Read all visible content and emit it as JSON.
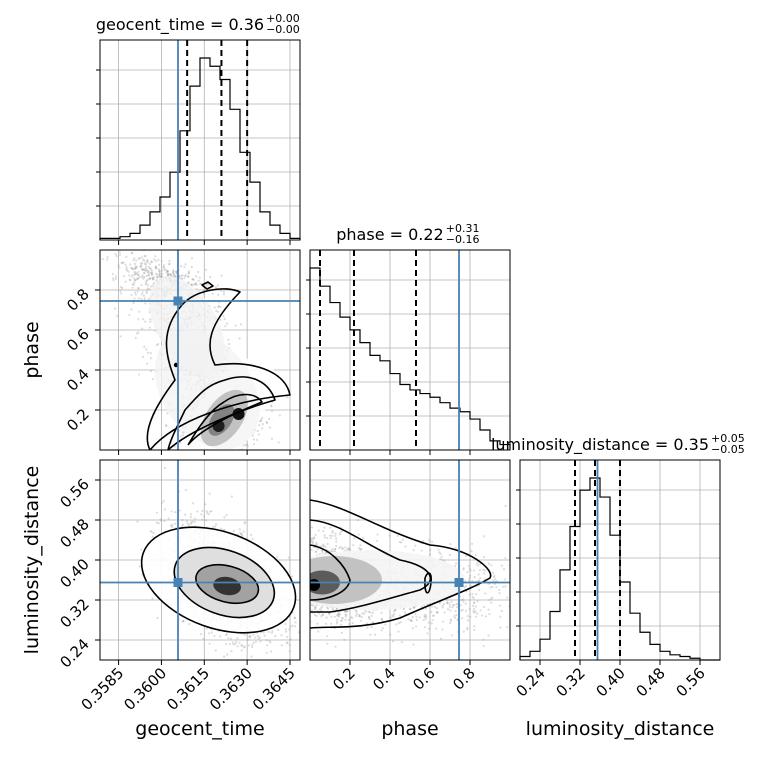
{
  "chart_data": {
    "type": "corner",
    "params": [
      "geocent_time",
      "phase",
      "luminosity_distance"
    ],
    "axis_labels": [
      "geocent_time",
      "phase",
      "luminosity_distance"
    ],
    "ranges": {
      "geocent_time": [
        0.35785,
        0.36485
      ],
      "phase": [
        0.0,
        1.0
      ],
      "luminosity_distance": [
        0.2,
        0.6
      ]
    },
    "ticks": {
      "geocent_time": [
        "0.3585",
        "0.3600",
        "0.3615",
        "0.3630",
        "0.3645"
      ],
      "phase": [
        "0.2",
        "0.4",
        "0.6",
        "0.8"
      ],
      "luminosity_distance": [
        "0.24",
        "0.32",
        "0.40",
        "0.48",
        "0.56"
      ]
    },
    "truths": {
      "geocent_time": 0.36058,
      "phase": 0.745,
      "luminosity_distance": 0.355
    },
    "titles": [
      {
        "param": "geocent_time",
        "label": "geocent_time = 0.36",
        "plus": "+0.00",
        "minus": "−0.00"
      },
      {
        "param": "phase",
        "label": "phase = 0.22",
        "plus": "+0.31",
        "minus": "−0.16"
      },
      {
        "param": "luminosity_distance",
        "label": "luminosity_distance = 0.35",
        "plus": "+0.05",
        "minus": "−0.05"
      }
    ],
    "quantiles": {
      "geocent_time": [
        0.3609,
        0.3621,
        0.363
      ],
      "phase": [
        0.05,
        0.22,
        0.53
      ],
      "luminosity_distance": [
        0.31,
        0.35,
        0.4
      ]
    },
    "histograms": {
      "geocent_time": {
        "bins": [
          0.35785,
          0.36485
        ],
        "counts": [
          1,
          1,
          2,
          4,
          9,
          17,
          26,
          41,
          66,
          93,
          110,
          105,
          97,
          79,
          53,
          35,
          17,
          9,
          4,
          1
        ]
      },
      "phase": {
        "bins": [
          0.0,
          1.0
        ],
        "counts": [
          100,
          90,
          81,
          73,
          66,
          59,
          52,
          49,
          42,
          36,
          33,
          31,
          29,
          26,
          23,
          21,
          17,
          11,
          5,
          3
        ]
      },
      "luminosity_distance": {
        "bins": [
          0.2,
          0.6
        ],
        "counts": [
          2,
          5,
          12,
          28,
          52,
          77,
          98,
          105,
          94,
          72,
          45,
          27,
          16,
          9,
          5,
          3,
          2,
          1,
          0,
          0
        ]
      }
    },
    "grid": true
  }
}
